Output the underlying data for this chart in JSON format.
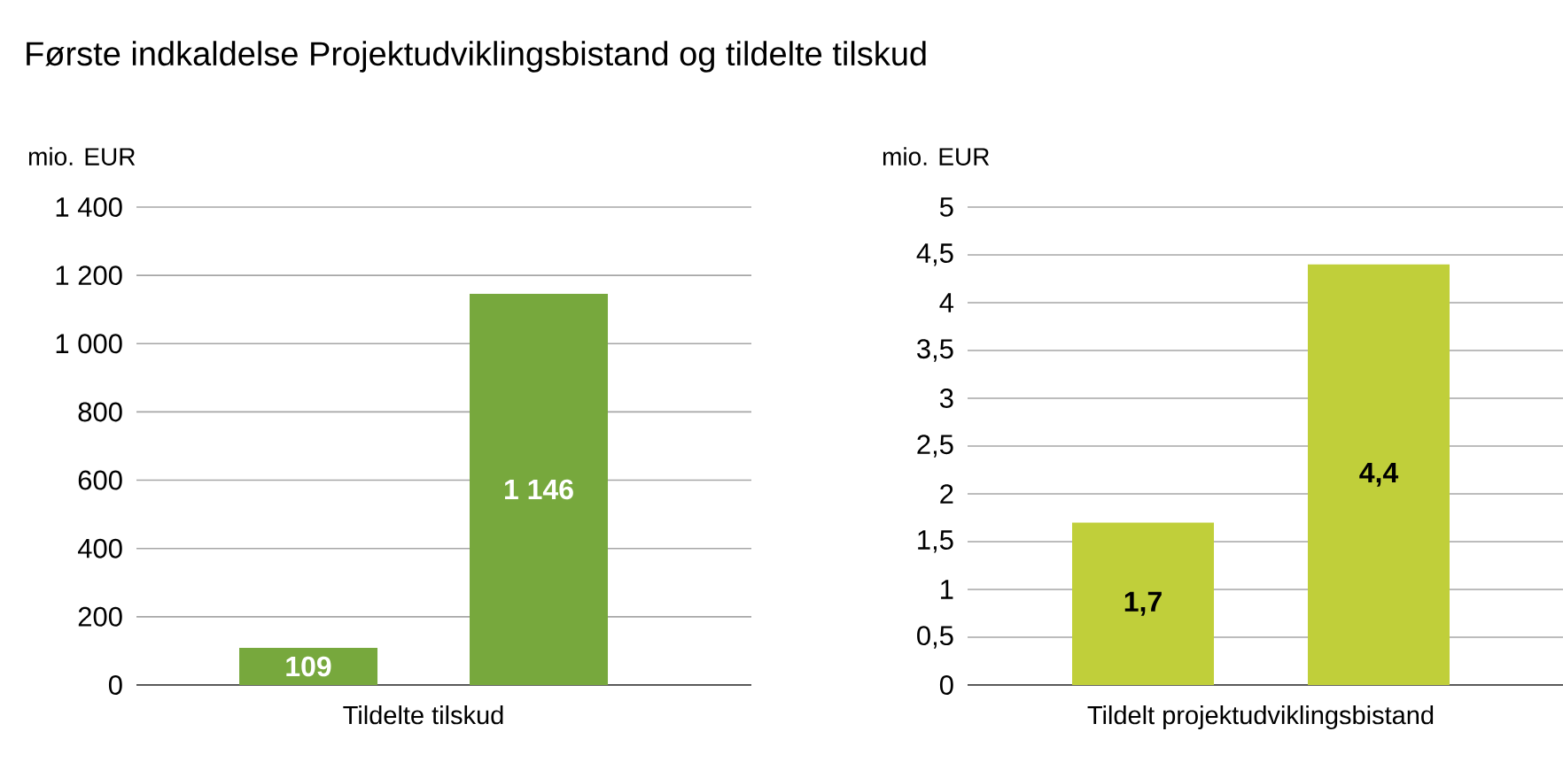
{
  "chart_data": [
    {
      "type": "bar",
      "title": "Første indkaldelse Projektudviklingsbistand og tildelte tilskud",
      "ylabel": "mio. EUR",
      "xlabel": "Tildelte tilskud",
      "categories": [
        null,
        null
      ],
      "color": "#77a83d",
      "values": [
        109,
        1146
      ],
      "value_labels": [
        "109",
        "1 146"
      ],
      "ylim": [
        0,
        1400
      ],
      "yticks": [
        0,
        200,
        400,
        600,
        800,
        {
          "value": 1000,
          "label": "1 000"
        },
        {
          "value": 1200,
          "label": "1 200"
        },
        {
          "value": 1400,
          "label": "1 400"
        }
      ],
      "grid": "y"
    },
    {
      "type": "bar",
      "ylabel": "mio. EUR",
      "xlabel": "Tildelt projektudviklingsbistand",
      "categories": [
        null,
        null
      ],
      "color": "#c0cf3a",
      "values": [
        1.7,
        4.4
      ],
      "value_labels": [
        "1,7",
        "4,4"
      ],
      "ylim": [
        0,
        5
      ],
      "yticks": [
        0,
        {
          "value": 0.5,
          "label": "0,5"
        },
        1,
        {
          "value": 1.5,
          "label": "1,5"
        },
        2,
        {
          "value": 2.5,
          "label": "2,5"
        },
        3,
        {
          "value": 3.5,
          "label": "3,5"
        },
        4,
        {
          "value": 4.5,
          "label": "4,5"
        },
        5
      ],
      "grid": "y"
    }
  ]
}
